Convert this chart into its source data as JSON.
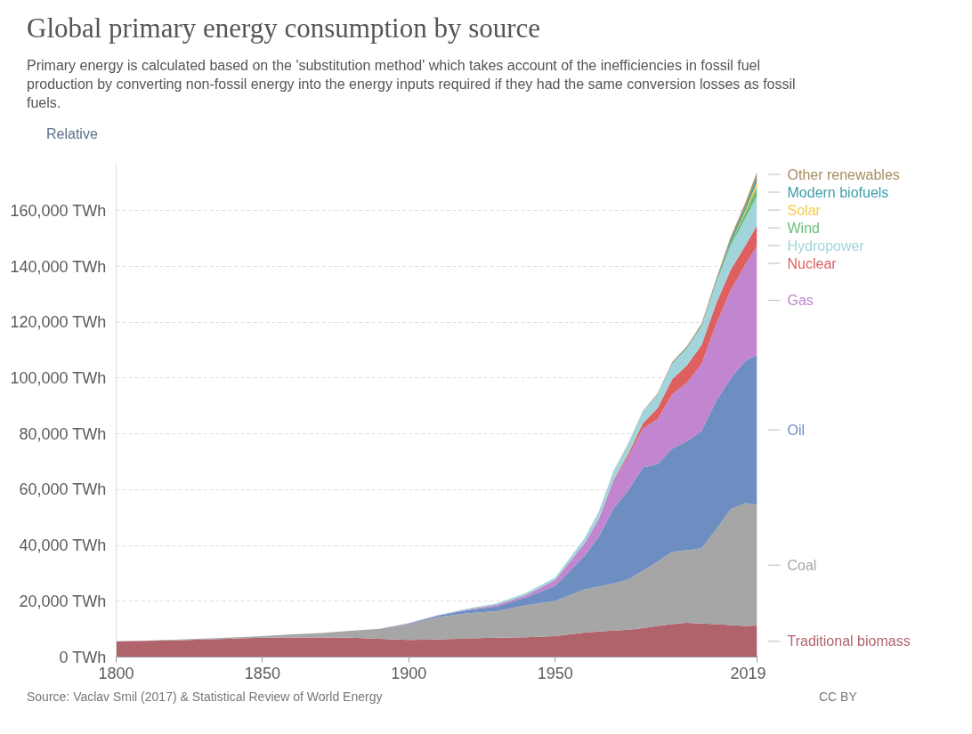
{
  "chart_data": {
    "type": "area",
    "stacked": true,
    "title": "Global primary energy consumption by source",
    "subtitle": "Primary energy is calculated based on the 'substitution method' which takes account of the inefficiencies in fossil fuel production by converting non-fossil energy into the energy inputs required if they had the same conversion losses as fossil fuels.",
    "annotations": [
      "Relative",
      "Source: Vaclav Smil (2017) & Statistical Review of World Energy",
      "CC BY"
    ],
    "x": [
      1800,
      1810,
      1820,
      1830,
      1840,
      1850,
      1860,
      1870,
      1880,
      1890,
      1900,
      1910,
      1920,
      1930,
      1940,
      1950,
      1960,
      1965,
      1970,
      1975,
      1980,
      1985,
      1990,
      1995,
      2000,
      2005,
      2010,
      2015,
      2019
    ],
    "series": [
      {
        "name": "Traditional biomass",
        "color": "#b1636c",
        "values": [
          5600,
          5800,
          6000,
          6300,
          6600,
          6900,
          7000,
          7000,
          6900,
          6500,
          6100,
          6300,
          6700,
          6900,
          7100,
          7500,
          8800,
          9200,
          9500,
          9800,
          10400,
          11200,
          11800,
          12300,
          12000,
          11800,
          11500,
          11200,
          11300
        ]
      },
      {
        "name": "Coal",
        "color": "#a6a6a6",
        "values": [
          100,
          100,
          200,
          300,
          400,
          600,
          1100,
          1600,
          2500,
          3600,
          5700,
          8000,
          9000,
          9500,
          11500,
          12600,
          15400,
          16100,
          16900,
          18000,
          20500,
          23000,
          25900,
          26000,
          27000,
          34000,
          41500,
          44000,
          43300
        ]
      },
      {
        "name": "Oil",
        "color": "#6e8ec2",
        "values": [
          0,
          0,
          0,
          0,
          0,
          0,
          0,
          0,
          0,
          0,
          200,
          500,
          1100,
          1700,
          2800,
          5400,
          12000,
          18000,
          27000,
          32000,
          37000,
          35000,
          37000,
          39000,
          42000,
          46000,
          47000,
          51000,
          53700
        ]
      },
      {
        "name": "Gas",
        "color": "#c285cf",
        "values": [
          0,
          0,
          0,
          0,
          0,
          0,
          0,
          0,
          0,
          0,
          100,
          200,
          300,
          600,
          800,
          2100,
          4500,
          6300,
          10000,
          12000,
          14000,
          16000,
          19500,
          21000,
          24000,
          27500,
          31500,
          34500,
          39100
        ]
      },
      {
        "name": "Nuclear",
        "color": "#de5f60",
        "values": [
          0,
          0,
          0,
          0,
          0,
          0,
          0,
          0,
          0,
          0,
          0,
          0,
          0,
          0,
          0,
          0,
          0,
          100,
          200,
          1000,
          1900,
          4000,
          5400,
          6200,
          6800,
          7300,
          7300,
          6800,
          7300
        ]
      },
      {
        "name": "Hydropower",
        "color": "#a2d5db",
        "values": [
          0,
          0,
          0,
          0,
          0,
          0,
          0,
          0,
          0,
          0,
          100,
          100,
          300,
          500,
          800,
          900,
          1800,
          2500,
          3100,
          3700,
          4300,
          5000,
          5500,
          6200,
          6700,
          7300,
          8600,
          9700,
          10500
        ]
      },
      {
        "name": "Wind",
        "color": "#6dbf7a",
        "values": [
          0,
          0,
          0,
          0,
          0,
          0,
          0,
          0,
          0,
          0,
          0,
          0,
          0,
          0,
          0,
          0,
          0,
          0,
          0,
          0,
          0,
          0,
          0,
          0,
          100,
          300,
          900,
          2200,
          3500
        ]
      },
      {
        "name": "Solar",
        "color": "#f7c945",
        "values": [
          0,
          0,
          0,
          0,
          0,
          0,
          0,
          0,
          0,
          0,
          0,
          0,
          0,
          0,
          0,
          0,
          0,
          0,
          0,
          0,
          0,
          0,
          0,
          0,
          0,
          0,
          100,
          700,
          1800
        ]
      },
      {
        "name": "Modern biofuels",
        "color": "#3c9ea8",
        "values": [
          0,
          0,
          0,
          0,
          0,
          0,
          0,
          0,
          0,
          0,
          0,
          0,
          0,
          0,
          0,
          0,
          0,
          0,
          0,
          0,
          0,
          0,
          200,
          200,
          200,
          400,
          1100,
          1300,
          1600
        ]
      },
      {
        "name": "Other renewables",
        "color": "#a98c5e",
        "values": [
          0,
          0,
          0,
          0,
          0,
          0,
          0,
          0,
          0,
          0,
          0,
          0,
          0,
          0,
          0,
          0,
          0,
          100,
          100,
          100,
          200,
          300,
          400,
          500,
          600,
          800,
          1100,
          1400,
          1800
        ]
      }
    ],
    "xlim": [
      1800,
      2019
    ],
    "xticks": [
      1800,
      1850,
      1900,
      1950,
      2019
    ],
    "ylim": [
      0,
      177000
    ],
    "yticks": [
      {
        "value": 0,
        "label": "0 TWh"
      },
      {
        "value": 20000,
        "label": "20,000 TWh"
      },
      {
        "value": 40000,
        "label": "40,000 TWh"
      },
      {
        "value": 60000,
        "label": "60,000 TWh"
      },
      {
        "value": 80000,
        "label": "80,000 TWh"
      },
      {
        "value": 100000,
        "label": "100,000 TWh"
      },
      {
        "value": 120000,
        "label": "120,000 TWh"
      },
      {
        "value": 140000,
        "label": "140,000 TWh"
      },
      {
        "value": 160000,
        "label": "160,000 TWh"
      }
    ],
    "grid": "y"
  }
}
